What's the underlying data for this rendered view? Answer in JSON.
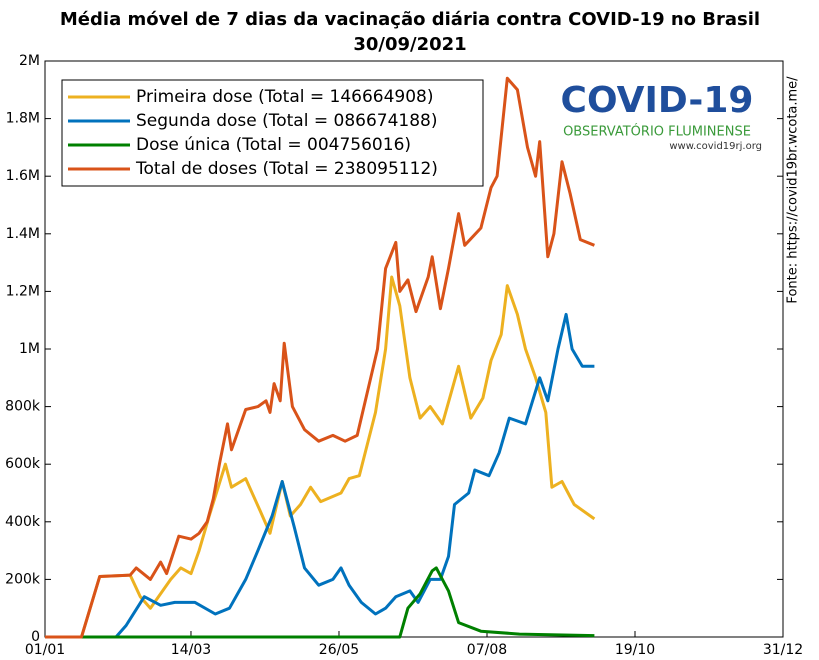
{
  "chart_data": {
    "type": "line",
    "title": "Média móvel de 7 dias da vacinação diária contra COVID-19 no Brasil",
    "subtitle": "30/09/2021",
    "side_note": "Fonte: https://covid19br.wcota.me/",
    "logo": {
      "title": "COVID-19",
      "subtitle": "OBSERVATÓRIO FLUMINENSE",
      "url": "www.covid19rj.org"
    },
    "xlim": [
      0,
      364
    ],
    "xticks": [
      {
        "value": 0,
        "label": "01/01"
      },
      {
        "value": 72,
        "label": "14/03"
      },
      {
        "value": 145,
        "label": "26/05"
      },
      {
        "value": 218,
        "label": "07/08"
      },
      {
        "value": 291,
        "label": "19/10"
      },
      {
        "value": 364,
        "label": "31/12"
      }
    ],
    "ylim": [
      0,
      2000000
    ],
    "yticks": [
      0,
      {
        "value": 200000,
        "label": "200k"
      },
      {
        "value": 400000,
        "label": "400k"
      },
      {
        "value": 600000,
        "label": "600k"
      },
      {
        "value": 800000,
        "label": "800k"
      },
      {
        "value": 1000000,
        "label": "1M"
      },
      {
        "value": 1200000,
        "label": "1.2M"
      },
      {
        "value": 1400000,
        "label": "1.4M"
      },
      {
        "value": 1600000,
        "label": "1.6M"
      },
      {
        "value": 1800000,
        "label": "1.8M"
      },
      {
        "value": 2000000,
        "label": "2M"
      }
    ],
    "grid": false,
    "legend": "upper left",
    "series": [
      {
        "name": "Primeira dose (Total = 146664908)",
        "color": "#edb120",
        "x": [
          0,
          18,
          27,
          42,
          47,
          52,
          62,
          67,
          72,
          76,
          81,
          89,
          92,
          99,
          106,
          111,
          117,
          121,
          126,
          131,
          136,
          146,
          150,
          155,
          163,
          168,
          171,
          175,
          180,
          185,
          190,
          196,
          204,
          210,
          216,
          220,
          225,
          228,
          233,
          237,
          242,
          247,
          250,
          255,
          261,
          271
        ],
        "values": [
          0,
          0,
          210000,
          215000,
          140000,
          100000,
          200000,
          240000,
          220000,
          300000,
          420000,
          600000,
          520000,
          550000,
          440000,
          360000,
          540000,
          420000,
          460000,
          520000,
          470000,
          500000,
          550000,
          560000,
          780000,
          1000000,
          1250000,
          1150000,
          900000,
          760000,
          800000,
          740000,
          940000,
          760000,
          830000,
          960000,
          1050000,
          1220000,
          1120000,
          1000000,
          900000,
          780000,
          520000,
          540000,
          460000,
          410000
        ]
      },
      {
        "name": "Segunda dose (Total = 086674188)",
        "color": "#0072bd",
        "x": [
          0,
          35,
          40,
          49,
          57,
          64,
          74,
          84,
          91,
          99,
          105,
          112,
          117,
          123,
          128,
          135,
          142,
          146,
          150,
          156,
          163,
          168,
          173,
          180,
          184,
          190,
          195,
          199,
          202,
          209,
          212,
          219,
          224,
          229,
          237,
          244,
          248,
          253,
          257,
          260,
          265,
          271
        ],
        "values": [
          0,
          0,
          40000,
          140000,
          110000,
          120000,
          120000,
          80000,
          100000,
          200000,
          300000,
          420000,
          540000,
          380000,
          240000,
          180000,
          200000,
          240000,
          180000,
          120000,
          80000,
          100000,
          140000,
          160000,
          120000,
          200000,
          200000,
          280000,
          460000,
          500000,
          580000,
          560000,
          640000,
          760000,
          740000,
          900000,
          820000,
          1000000,
          1120000,
          1000000,
          940000,
          940000
        ]
      },
      {
        "name": "Dose única (Total = 004756016)",
        "color": "#008000",
        "x": [
          0,
          175,
          179,
          185,
          191,
          193,
          199,
          204,
          215,
          234,
          271
        ],
        "values": [
          0,
          0,
          100000,
          150000,
          230000,
          240000,
          160000,
          50000,
          20000,
          10000,
          5000
        ]
      },
      {
        "name": "Total de doses (Total = 238095112)",
        "color": "#d95319",
        "x": [
          0,
          18,
          27,
          42,
          45,
          52,
          57,
          60,
          66,
          72,
          76,
          80,
          83,
          86,
          90,
          92,
          99,
          105,
          109,
          111,
          113,
          116,
          118,
          122,
          128,
          135,
          142,
          148,
          154,
          164,
          168,
          173,
          175,
          179,
          183,
          189,
          191,
          195,
          199,
          204,
          207,
          215,
          220,
          223,
          228,
          233,
          238,
          242,
          244,
          248,
          251,
          255,
          259,
          264,
          271
        ],
        "values": [
          0,
          0,
          210000,
          215000,
          240000,
          200000,
          260000,
          220000,
          350000,
          340000,
          360000,
          400000,
          480000,
          600000,
          740000,
          650000,
          790000,
          800000,
          820000,
          780000,
          880000,
          820000,
          1020000,
          800000,
          720000,
          680000,
          700000,
          680000,
          700000,
          1000000,
          1280000,
          1370000,
          1200000,
          1240000,
          1130000,
          1250000,
          1320000,
          1140000,
          1280000,
          1470000,
          1360000,
          1420000,
          1560000,
          1600000,
          1940000,
          1900000,
          1700000,
          1600000,
          1720000,
          1320000,
          1400000,
          1650000,
          1540000,
          1380000,
          1360000
        ]
      }
    ]
  }
}
